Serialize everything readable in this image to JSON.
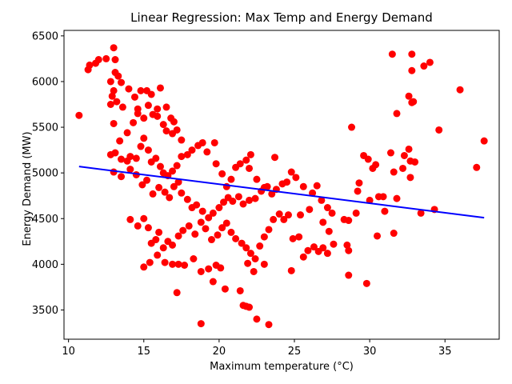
{
  "chart_data": {
    "type": "scatter",
    "title": "Linear Regression: Max Temp and Energy Demand",
    "xlabel": "Maximum temperature (°C)",
    "ylabel": "Energy Demand (MW)",
    "xlim": [
      9.7,
      38.6
    ],
    "ylim": [
      3180,
      6560
    ],
    "xticks": [
      10,
      15,
      20,
      25,
      30,
      35
    ],
    "yticks": [
      3500,
      4000,
      4500,
      5000,
      5500,
      6000,
      6500
    ],
    "grid": false,
    "legend": "none",
    "colors": {
      "points": "#ff0000",
      "line": "#0000ff"
    },
    "series": [
      {
        "kind": "points",
        "points": [
          [
            10.7,
            5630
          ],
          [
            11.3,
            6130
          ],
          [
            11.4,
            6180
          ],
          [
            11.8,
            6200
          ],
          [
            12.0,
            6240
          ],
          [
            12.5,
            6250
          ],
          [
            13.0,
            6370
          ],
          [
            13.1,
            6240
          ],
          [
            13.1,
            6100
          ],
          [
            13.3,
            6060
          ],
          [
            13.5,
            5990
          ],
          [
            12.8,
            6000
          ],
          [
            13.0,
            5900
          ],
          [
            12.9,
            5840
          ],
          [
            13.2,
            5780
          ],
          [
            12.8,
            5750
          ],
          [
            13.6,
            5720
          ],
          [
            14.0,
            5920
          ],
          [
            14.4,
            5830
          ],
          [
            14.6,
            5700
          ],
          [
            14.8,
            5900
          ],
          [
            15.2,
            5900
          ],
          [
            15.5,
            5860
          ],
          [
            15.9,
            5700
          ],
          [
            16.1,
            5930
          ],
          [
            16.5,
            5720
          ],
          [
            16.8,
            5600
          ],
          [
            17.0,
            5560
          ],
          [
            13.9,
            5440
          ],
          [
            14.3,
            5550
          ],
          [
            14.6,
            5650
          ],
          [
            15.0,
            5600
          ],
          [
            15.3,
            5740
          ],
          [
            15.6,
            5640
          ],
          [
            15.9,
            5620
          ],
          [
            16.3,
            5530
          ],
          [
            16.5,
            5460
          ],
          [
            16.9,
            5430
          ],
          [
            17.2,
            5470
          ],
          [
            17.5,
            5360
          ],
          [
            13.0,
            5540
          ],
          [
            13.4,
            5350
          ],
          [
            13.1,
            5220
          ],
          [
            12.8,
            5200
          ],
          [
            13.5,
            5150
          ],
          [
            13.9,
            5130
          ],
          [
            14.1,
            5180
          ],
          [
            14.5,
            5160
          ],
          [
            14.8,
            5290
          ],
          [
            15.0,
            5380
          ],
          [
            15.3,
            5250
          ],
          [
            15.5,
            5120
          ],
          [
            15.8,
            5160
          ],
          [
            16.1,
            5070
          ],
          [
            16.3,
            5000
          ],
          [
            16.6,
            4970
          ],
          [
            16.9,
            5020
          ],
          [
            17.2,
            5080
          ],
          [
            17.5,
            5180
          ],
          [
            17.9,
            5200
          ],
          [
            18.2,
            5250
          ],
          [
            18.6,
            5300
          ],
          [
            18.9,
            5330
          ],
          [
            19.2,
            5230
          ],
          [
            19.7,
            5330
          ],
          [
            13.0,
            5010
          ],
          [
            13.5,
            4960
          ],
          [
            14.1,
            5040
          ],
          [
            14.5,
            4980
          ],
          [
            14.9,
            4870
          ],
          [
            15.2,
            4920
          ],
          [
            15.6,
            4770
          ],
          [
            16.0,
            4840
          ],
          [
            16.4,
            4790
          ],
          [
            16.7,
            4730
          ],
          [
            17.0,
            4850
          ],
          [
            17.3,
            4900
          ],
          [
            17.5,
            4780
          ],
          [
            17.9,
            4710
          ],
          [
            18.2,
            4620
          ],
          [
            18.5,
            4650
          ],
          [
            18.9,
            4580
          ],
          [
            19.3,
            4510
          ],
          [
            19.6,
            4560
          ],
          [
            20.0,
            4620
          ],
          [
            20.3,
            4680
          ],
          [
            20.6,
            4730
          ],
          [
            20.9,
            4690
          ],
          [
            21.3,
            4740
          ],
          [
            21.6,
            4660
          ],
          [
            22.0,
            4700
          ],
          [
            22.4,
            4720
          ],
          [
            22.8,
            4800
          ],
          [
            23.2,
            4850
          ],
          [
            23.5,
            4770
          ],
          [
            23.8,
            4820
          ],
          [
            24.2,
            4880
          ],
          [
            24.5,
            4900
          ],
          [
            24.8,
            5010
          ],
          [
            25.1,
            4950
          ],
          [
            19.8,
            5100
          ],
          [
            20.2,
            4990
          ],
          [
            20.5,
            4850
          ],
          [
            20.8,
            4930
          ],
          [
            21.1,
            5060
          ],
          [
            21.4,
            5100
          ],
          [
            21.8,
            5140
          ],
          [
            22.1,
            5200
          ],
          [
            22.0,
            5050
          ],
          [
            22.5,
            4930
          ],
          [
            23.0,
            4840
          ],
          [
            23.7,
            5170
          ],
          [
            14.1,
            4490
          ],
          [
            14.6,
            4420
          ],
          [
            15.0,
            4500
          ],
          [
            15.3,
            4400
          ],
          [
            15.5,
            4230
          ],
          [
            15.8,
            4270
          ],
          [
            16.0,
            4350
          ],
          [
            16.3,
            4180
          ],
          [
            16.6,
            4250
          ],
          [
            16.9,
            4210
          ],
          [
            17.3,
            4310
          ],
          [
            17.6,
            4370
          ],
          [
            18.0,
            4420
          ],
          [
            18.4,
            4330
          ],
          [
            18.8,
            4460
          ],
          [
            19.1,
            4390
          ],
          [
            19.5,
            4270
          ],
          [
            19.9,
            4320
          ],
          [
            20.2,
            4400
          ],
          [
            20.5,
            4450
          ],
          [
            20.8,
            4350
          ],
          [
            21.1,
            4280
          ],
          [
            21.5,
            4230
          ],
          [
            21.8,
            4180
          ],
          [
            22.1,
            4120
          ],
          [
            22.4,
            4060
          ],
          [
            22.7,
            4200
          ],
          [
            23.0,
            4300
          ],
          [
            23.3,
            4380
          ],
          [
            23.6,
            4490
          ],
          [
            24.0,
            4550
          ],
          [
            24.3,
            4490
          ],
          [
            24.6,
            4540
          ],
          [
            24.9,
            4280
          ],
          [
            25.3,
            4300
          ],
          [
            25.6,
            4080
          ],
          [
            25.9,
            4150
          ],
          [
            26.3,
            4190
          ],
          [
            26.6,
            4140
          ],
          [
            26.9,
            4180
          ],
          [
            27.2,
            4120
          ],
          [
            15.0,
            3970
          ],
          [
            15.4,
            4020
          ],
          [
            15.9,
            4100
          ],
          [
            16.4,
            4020
          ],
          [
            16.9,
            4000
          ],
          [
            17.3,
            4000
          ],
          [
            17.7,
            3990
          ],
          [
            18.3,
            4060
          ],
          [
            18.8,
            3920
          ],
          [
            19.3,
            3950
          ],
          [
            19.8,
            3990
          ],
          [
            20.1,
            3960
          ],
          [
            21.9,
            4010
          ],
          [
            22.3,
            3920
          ],
          [
            23.0,
            4000
          ],
          [
            24.8,
            3930
          ],
          [
            17.2,
            3690
          ],
          [
            19.6,
            3810
          ],
          [
            20.4,
            3730
          ],
          [
            21.4,
            3710
          ],
          [
            21.6,
            3550
          ],
          [
            22.0,
            3530
          ],
          [
            21.8,
            3540
          ],
          [
            22.5,
            3400
          ],
          [
            23.3,
            3340
          ],
          [
            18.8,
            3350
          ],
          [
            25.6,
            4850
          ],
          [
            26.2,
            4780
          ],
          [
            26.5,
            4860
          ],
          [
            26.8,
            4700
          ],
          [
            27.2,
            4620
          ],
          [
            27.5,
            4560
          ],
          [
            26.0,
            4600
          ],
          [
            25.4,
            4540
          ],
          [
            26.9,
            4460
          ],
          [
            27.3,
            4360
          ],
          [
            27.6,
            4220
          ],
          [
            28.3,
            4490
          ],
          [
            28.6,
            4480
          ],
          [
            28.5,
            4210
          ],
          [
            28.6,
            4150
          ],
          [
            28.6,
            3880
          ],
          [
            28.8,
            5500
          ],
          [
            29.2,
            4800
          ],
          [
            29.3,
            4890
          ],
          [
            29.6,
            5190
          ],
          [
            29.9,
            5150
          ],
          [
            30.2,
            5050
          ],
          [
            30.4,
            5090
          ],
          [
            30.6,
            4740
          ],
          [
            30.9,
            4740
          ],
          [
            30.0,
            4700
          ],
          [
            31.0,
            4580
          ],
          [
            30.5,
            4310
          ],
          [
            31.6,
            4340
          ],
          [
            31.4,
            5220
          ],
          [
            31.6,
            5010
          ],
          [
            31.8,
            5650
          ],
          [
            32.3,
            5190
          ],
          [
            32.2,
            5050
          ],
          [
            32.6,
            5260
          ],
          [
            32.7,
            5130
          ],
          [
            32.7,
            4950
          ],
          [
            32.6,
            5840
          ],
          [
            32.8,
            5770
          ],
          [
            32.9,
            5780
          ],
          [
            33.0,
            5120
          ],
          [
            31.5,
            6300
          ],
          [
            32.8,
            6300
          ],
          [
            32.8,
            6120
          ],
          [
            33.6,
            6170
          ],
          [
            34.0,
            6210
          ],
          [
            31.8,
            4720
          ],
          [
            33.4,
            4560
          ],
          [
            34.3,
            4600
          ],
          [
            34.6,
            5470
          ],
          [
            36.0,
            5910
          ],
          [
            37.1,
            5060
          ],
          [
            37.6,
            5350
          ],
          [
            29.1,
            4560
          ],
          [
            29.8,
            3790
          ]
        ]
      },
      {
        "kind": "line",
        "points": [
          [
            10.7,
            5070
          ],
          [
            37.6,
            4510
          ]
        ]
      }
    ]
  }
}
